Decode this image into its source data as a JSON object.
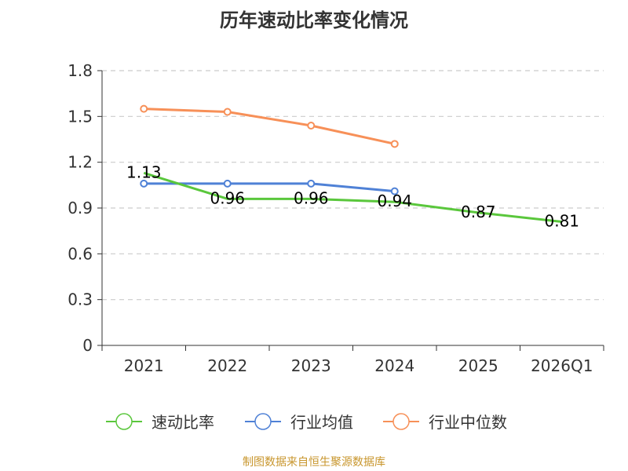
{
  "title": "历年速动比率变化情况",
  "source": "制图数据来自恒生聚源数据库",
  "chart_data": {
    "type": "line",
    "title": "历年速动比率变化情况",
    "categories": [
      "2021",
      "2022",
      "2023",
      "2024",
      "2025",
      "2026Q1"
    ],
    "ylim": [
      0,
      1.8
    ],
    "yticks": [
      "0",
      "0.3",
      "0.6",
      "0.9",
      "1.2",
      "1.5",
      "1.8"
    ],
    "grid": true,
    "legend_position": "bottom",
    "series": [
      {
        "name": "速动比率",
        "color": "#5ac73c",
        "values": [
          1.13,
          0.96,
          0.96,
          0.94,
          0.87,
          0.81
        ],
        "labels": [
          "1.13",
          "0.96",
          "0.96",
          "0.94",
          "0.87",
          "0.81"
        ]
      },
      {
        "name": "行业均值",
        "color": "#4f81d6",
        "values": [
          1.06,
          1.06,
          1.06,
          1.01,
          null,
          null
        ]
      },
      {
        "name": "行业中位数",
        "color": "#f79058",
        "values": [
          1.55,
          1.53,
          1.44,
          1.32,
          null,
          null
        ]
      }
    ]
  }
}
